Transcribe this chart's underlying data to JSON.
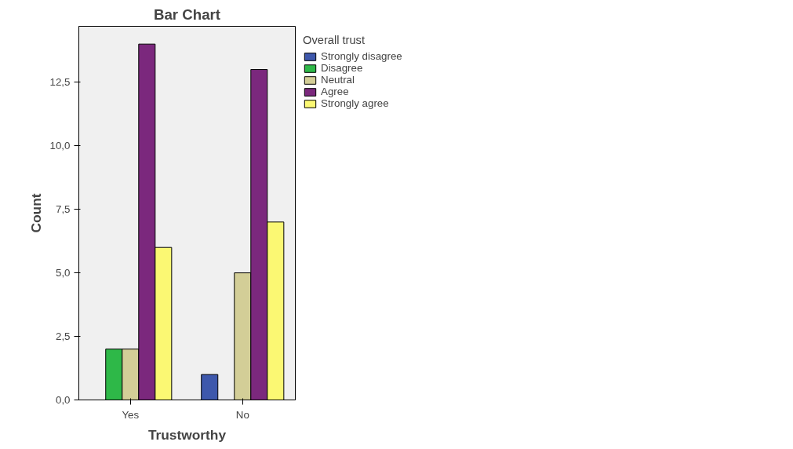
{
  "chart_data": {
    "type": "bar",
    "title": "Bar Chart",
    "xlabel": "Trustworthy",
    "ylabel": "Count",
    "legend_title": "Overall trust",
    "categories": [
      "Yes",
      "No"
    ],
    "series": [
      {
        "name": "Strongly disagree",
        "color": "#3e58ac",
        "values": [
          null,
          1
        ]
      },
      {
        "name": "Disagree",
        "color": "#2eb848",
        "values": [
          2,
          null
        ]
      },
      {
        "name": "Neutral",
        "color": "#d3ce97",
        "values": [
          2,
          5
        ]
      },
      {
        "name": "Agree",
        "color": "#7b287d",
        "values": [
          14,
          13
        ]
      },
      {
        "name": "Strongly agree",
        "color": "#fbf873",
        "values": [
          6,
          7
        ]
      }
    ],
    "ylim": [
      0,
      14.7
    ],
    "yticks": [
      {
        "value": 0,
        "label": "0,0"
      },
      {
        "value": 2.5,
        "label": "2,5"
      },
      {
        "value": 5,
        "label": "5,0"
      },
      {
        "value": 7.5,
        "label": "7,5"
      },
      {
        "value": 10,
        "label": "10,0"
      },
      {
        "value": 12.5,
        "label": "12,5"
      }
    ],
    "legend": "top right",
    "grid": false
  }
}
